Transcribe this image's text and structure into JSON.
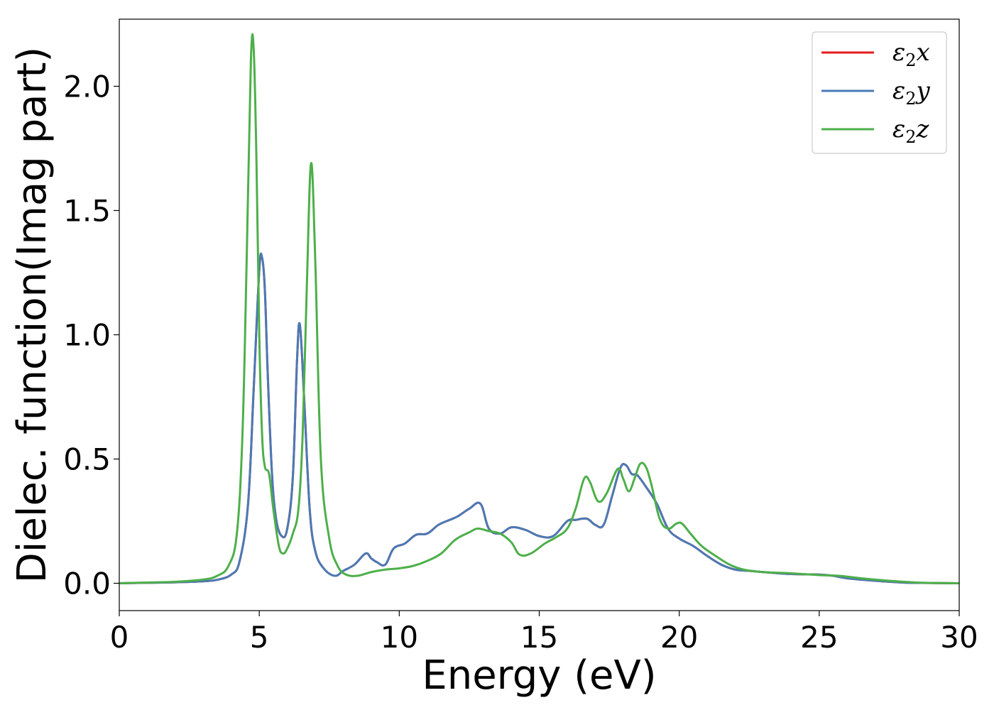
{
  "chart_data": {
    "type": "line",
    "xlabel": "Energy (eV)",
    "ylabel": "Dielec. function(Imag part)",
    "xlim": [
      0,
      30
    ],
    "ylim": [
      -0.11,
      2.27
    ],
    "xticks": [
      0,
      5,
      10,
      15,
      20,
      25,
      30
    ],
    "xtick_labels": [
      "0",
      "5",
      "10",
      "15",
      "20",
      "25",
      "30"
    ],
    "yticks": [
      0.0,
      0.5,
      1.0,
      1.5,
      2.0
    ],
    "ytick_labels": [
      "0.0",
      "0.5",
      "1.0",
      "1.5",
      "2.0"
    ],
    "grid": false,
    "legend_position": "top-right",
    "series": [
      {
        "name": "ε2x",
        "legend_base": "ε",
        "legend_sub": "2",
        "legend_var": "x",
        "color": "#e41a1c",
        "x": [
          0,
          1,
          2,
          3,
          3.5,
          4,
          4.3,
          4.6,
          4.8,
          5.0,
          5.1,
          5.2,
          5.3,
          5.45,
          5.6,
          5.8,
          6.0,
          6.2,
          6.35,
          6.45,
          6.6,
          6.8,
          7.0,
          7.3,
          7.7,
          8.0,
          8.4,
          8.8,
          9.0,
          9.2,
          9.5,
          9.8,
          10.2,
          10.6,
          11.0,
          11.4,
          11.8,
          12.1,
          12.5,
          12.9,
          13.2,
          13.6,
          14.0,
          14.5,
          15.0,
          15.5,
          16.0,
          16.3,
          16.7,
          17.0,
          17.3,
          17.6,
          17.9,
          18.1,
          18.3,
          18.5,
          18.8,
          19.2,
          19.6,
          20.0,
          20.5,
          21.0,
          21.5,
          22.0,
          22.5,
          23.0,
          24.0,
          25.0,
          25.5,
          26.0,
          27.0,
          28.0,
          29.0,
          30.0
        ],
        "values": [
          0.0,
          0.002,
          0.004,
          0.008,
          0.014,
          0.035,
          0.09,
          0.32,
          0.78,
          1.26,
          1.31,
          1.18,
          0.85,
          0.45,
          0.26,
          0.19,
          0.22,
          0.43,
          0.9,
          1.04,
          0.75,
          0.3,
          0.13,
          0.06,
          0.03,
          0.05,
          0.075,
          0.12,
          0.1,
          0.085,
          0.075,
          0.14,
          0.16,
          0.195,
          0.2,
          0.235,
          0.255,
          0.27,
          0.3,
          0.32,
          0.22,
          0.2,
          0.225,
          0.215,
          0.19,
          0.19,
          0.25,
          0.255,
          0.26,
          0.235,
          0.235,
          0.35,
          0.465,
          0.475,
          0.44,
          0.435,
          0.39,
          0.32,
          0.22,
          0.18,
          0.15,
          0.11,
          0.075,
          0.055,
          0.05,
          0.045,
          0.037,
          0.035,
          0.03,
          0.02,
          0.01,
          0.003,
          0.001,
          0.0
        ]
      },
      {
        "name": "ε2y",
        "legend_base": "ε",
        "legend_sub": "2",
        "legend_var": "y",
        "color": "#4a7ab5",
        "x": [
          0,
          1,
          2,
          3,
          3.5,
          4,
          4.3,
          4.6,
          4.8,
          5.0,
          5.1,
          5.2,
          5.3,
          5.45,
          5.6,
          5.8,
          6.0,
          6.2,
          6.35,
          6.45,
          6.6,
          6.8,
          7.0,
          7.3,
          7.7,
          8.0,
          8.4,
          8.8,
          9.0,
          9.2,
          9.5,
          9.8,
          10.2,
          10.6,
          11.0,
          11.4,
          11.8,
          12.1,
          12.5,
          12.9,
          13.2,
          13.6,
          14.0,
          14.5,
          15.0,
          15.5,
          16.0,
          16.3,
          16.7,
          17.0,
          17.3,
          17.6,
          17.9,
          18.1,
          18.3,
          18.5,
          18.8,
          19.2,
          19.6,
          20.0,
          20.5,
          21.0,
          21.5,
          22.0,
          22.5,
          23.0,
          24.0,
          25.0,
          25.5,
          26.0,
          27.0,
          28.0,
          29.0,
          30.0
        ],
        "values": [
          0.0,
          0.002,
          0.004,
          0.008,
          0.014,
          0.035,
          0.09,
          0.32,
          0.78,
          1.26,
          1.31,
          1.18,
          0.85,
          0.45,
          0.26,
          0.19,
          0.22,
          0.43,
          0.9,
          1.04,
          0.75,
          0.3,
          0.13,
          0.06,
          0.03,
          0.05,
          0.075,
          0.12,
          0.1,
          0.085,
          0.075,
          0.14,
          0.16,
          0.195,
          0.2,
          0.235,
          0.255,
          0.27,
          0.3,
          0.32,
          0.22,
          0.2,
          0.225,
          0.215,
          0.19,
          0.19,
          0.25,
          0.255,
          0.26,
          0.235,
          0.235,
          0.35,
          0.465,
          0.475,
          0.44,
          0.435,
          0.39,
          0.32,
          0.22,
          0.18,
          0.15,
          0.11,
          0.075,
          0.055,
          0.05,
          0.045,
          0.037,
          0.035,
          0.03,
          0.02,
          0.01,
          0.003,
          0.001,
          0.0
        ]
      },
      {
        "name": "ε2z",
        "legend_base": "ε",
        "legend_sub": "2",
        "legend_var": "z",
        "color": "#4daf4a",
        "x": [
          0,
          1,
          2,
          3,
          3.5,
          3.9,
          4.2,
          4.4,
          4.55,
          4.7,
          4.8,
          4.9,
          5.0,
          5.1,
          5.2,
          5.35,
          5.5,
          5.7,
          5.85,
          6.0,
          6.2,
          6.4,
          6.55,
          6.7,
          6.85,
          7.0,
          7.2,
          7.5,
          7.8,
          8.1,
          8.5,
          9.0,
          9.5,
          10.0,
          10.5,
          11.0,
          11.5,
          12.0,
          12.5,
          12.8,
          13.2,
          13.6,
          14.0,
          14.3,
          14.7,
          15.2,
          15.6,
          16.0,
          16.3,
          16.6,
          16.8,
          17.1,
          17.4,
          17.8,
          18.0,
          18.2,
          18.4,
          18.6,
          18.8,
          19.0,
          19.3,
          19.6,
          19.9,
          20.1,
          20.4,
          20.8,
          21.3,
          21.8,
          22.3,
          23.0,
          24.0,
          25.0,
          25.7,
          26.5,
          27.5,
          28.5,
          30.0
        ],
        "values": [
          0.0,
          0.003,
          0.006,
          0.015,
          0.03,
          0.07,
          0.2,
          0.6,
          1.3,
          2.1,
          2.15,
          1.7,
          1.0,
          0.6,
          0.47,
          0.44,
          0.3,
          0.15,
          0.12,
          0.14,
          0.2,
          0.3,
          0.6,
          1.2,
          1.69,
          1.3,
          0.5,
          0.18,
          0.07,
          0.035,
          0.03,
          0.045,
          0.055,
          0.06,
          0.07,
          0.09,
          0.12,
          0.175,
          0.205,
          0.22,
          0.21,
          0.2,
          0.165,
          0.115,
          0.12,
          0.16,
          0.185,
          0.22,
          0.3,
          0.42,
          0.41,
          0.33,
          0.36,
          0.46,
          0.42,
          0.37,
          0.42,
          0.48,
          0.47,
          0.4,
          0.26,
          0.22,
          0.24,
          0.24,
          0.2,
          0.15,
          0.11,
          0.075,
          0.055,
          0.045,
          0.04,
          0.033,
          0.03,
          0.02,
          0.01,
          0.003,
          0.0
        ]
      }
    ]
  }
}
